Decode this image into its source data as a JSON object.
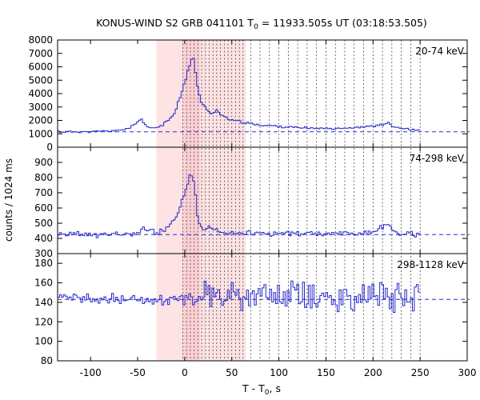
{
  "chart_data": {
    "type": "line",
    "title_main": "KONUS-WIND S2 GRB 041101 T",
    "title_sub": "0",
    "title_rest": " = 11933.505s UT (03:18:53.505)",
    "xlabel_main": "T - T",
    "xlabel_sub": "0",
    "xlabel_rest": ", s",
    "ylabel": "counts / 1024 ms",
    "xlim": [
      -135,
      300
    ],
    "xticks": [
      -100,
      -50,
      0,
      50,
      100,
      150,
      200,
      250,
      300
    ],
    "xtick_labels": [
      "-100",
      "-50",
      "0",
      "50",
      "100",
      "150",
      "200",
      "250",
      "300"
    ],
    "shaded_interval": [
      -30,
      65
    ],
    "inner_interval": [
      -2,
      16
    ],
    "data_end": 250,
    "dashed_lines": [
      -2,
      2,
      6,
      10,
      14,
      18,
      22,
      26,
      30,
      34,
      38,
      42,
      46,
      50,
      54,
      58,
      62,
      70,
      80,
      90,
      100,
      110,
      120,
      130,
      140,
      150,
      160,
      170,
      180,
      190,
      200,
      210,
      220,
      230,
      240,
      250
    ],
    "bin_width": 2.048,
    "panels": [
      {
        "label": "20-74 keV",
        "ylim": [
          0,
          8000
        ],
        "yticks": [
          0,
          1000,
          2000,
          3000,
          4000,
          5000,
          6000,
          7000,
          8000
        ],
        "ytick_labels": [
          "0",
          "1000",
          "2000",
          "3000",
          "4000",
          "5000",
          "6000",
          "7000",
          "8000"
        ],
        "background": 1150,
        "x": [
          -135,
          -100,
          -70,
          -60,
          -55,
          -50,
          -47,
          -45,
          -42,
          -38,
          -35,
          -30,
          -25,
          -20,
          -15,
          -10,
          -8,
          -5,
          -3,
          -1,
          1,
          3,
          5,
          6,
          8,
          9,
          10,
          12,
          14,
          16,
          18,
          20,
          22,
          24,
          26,
          28,
          30,
          33,
          36,
          40,
          45,
          50,
          55,
          60,
          70,
          80,
          100,
          120,
          150,
          180,
          200,
          210,
          215,
          220,
          230,
          240,
          250
        ],
        "y": [
          1150,
          1150,
          1250,
          1450,
          1650,
          1950,
          2050,
          1850,
          1550,
          1450,
          1420,
          1500,
          1650,
          1900,
          2250,
          2800,
          3400,
          3900,
          4500,
          4900,
          5300,
          5900,
          6100,
          6550,
          6700,
          6400,
          5800,
          4700,
          4100,
          3400,
          3150,
          3050,
          2850,
          2700,
          2550,
          2500,
          2650,
          2800,
          2500,
          2300,
          2150,
          2000,
          1950,
          1850,
          1750,
          1650,
          1550,
          1450,
          1400,
          1450,
          1600,
          1700,
          1800,
          1550,
          1400,
          1300,
          1250
        ],
        "noise": 60,
        "seed": 11
      },
      {
        "label": "74-298 keV",
        "ylim": [
          300,
          1000
        ],
        "yticks": [
          300,
          400,
          500,
          600,
          700,
          800,
          900
        ],
        "ytick_labels": [
          "300",
          "400",
          "500",
          "600",
          "700",
          "800",
          "900"
        ],
        "background": 425,
        "x": [
          -135,
          -60,
          -50,
          -45,
          -40,
          -35,
          -30,
          -25,
          -20,
          -15,
          -10,
          -7,
          -5,
          -3,
          -1,
          1,
          3,
          4,
          6,
          7,
          8,
          9,
          10,
          11,
          12,
          14,
          16,
          18,
          20,
          22,
          25,
          28,
          30,
          35,
          40,
          50,
          70,
          100,
          150,
          200,
          210,
          215,
          220,
          230,
          250
        ],
        "y": [
          425,
          425,
          440,
          470,
          450,
          440,
          440,
          450,
          470,
          500,
          540,
          580,
          620,
          660,
          710,
          730,
          780,
          820,
          790,
          860,
          770,
          820,
          700,
          660,
          560,
          510,
          480,
          470,
          460,
          455,
          490,
          450,
          470,
          455,
          450,
          440,
          435,
          430,
          430,
          440,
          480,
          500,
          450,
          430,
          425
        ],
        "noise": 14,
        "seed": 23
      },
      {
        "label": "298-1128 keV",
        "ylim": [
          80,
          190
        ],
        "yticks": [
          80,
          100,
          120,
          140,
          160,
          180
        ],
        "ytick_labels": [
          "80",
          "100",
          "120",
          "140",
          "160",
          "180"
        ],
        "background": 143,
        "x": [
          -135,
          0,
          10,
          250
        ],
        "y": [
          143,
          143,
          148,
          145
        ],
        "noise": 4,
        "noise_wide": 11,
        "wide_from": -5,
        "seed": 37
      }
    ]
  }
}
